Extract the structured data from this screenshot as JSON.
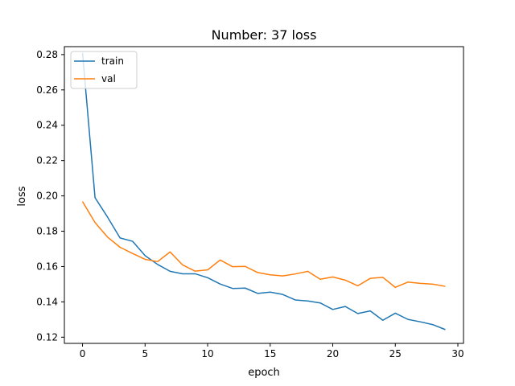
{
  "chart_data": {
    "type": "line",
    "title": "Number: 37 loss",
    "xlabel": "epoch",
    "ylabel": "loss",
    "xlim": [
      -1.45,
      30.45
    ],
    "ylim": [
      0.1165,
      0.2845
    ],
    "xticks": [
      0,
      5,
      10,
      15,
      20,
      25,
      30
    ],
    "yticks": [
      0.12,
      0.14,
      0.16,
      0.18,
      0.2,
      0.22,
      0.24,
      0.26,
      0.28
    ],
    "x": [
      0,
      1,
      2,
      3,
      4,
      5,
      6,
      7,
      8,
      9,
      10,
      11,
      12,
      13,
      14,
      15,
      16,
      17,
      18,
      19,
      20,
      21,
      22,
      23,
      24,
      25,
      26,
      27,
      28,
      29
    ],
    "series": [
      {
        "name": "train",
        "color": "#1f77b4",
        "values": [
          0.281,
          0.199,
          0.188,
          0.1762,
          0.1743,
          0.1662,
          0.1612,
          0.1573,
          0.1559,
          0.1559,
          0.1537,
          0.1501,
          0.1476,
          0.1478,
          0.1448,
          0.1455,
          0.1442,
          0.1411,
          0.1405,
          0.1394,
          0.1357,
          0.1374,
          0.1334,
          0.1349,
          0.1296,
          0.1336,
          0.1301,
          0.1287,
          0.1271,
          0.1243
        ]
      },
      {
        "name": "val",
        "color": "#ff7f0e",
        "values": [
          0.1968,
          0.1849,
          0.1767,
          0.1709,
          0.1674,
          0.1641,
          0.1628,
          0.1683,
          0.1609,
          0.1574,
          0.1581,
          0.1637,
          0.1599,
          0.1601,
          0.1566,
          0.1553,
          0.1547,
          0.1558,
          0.1573,
          0.1528,
          0.1541,
          0.1523,
          0.1491,
          0.1533,
          0.1539,
          0.1482,
          0.1512,
          0.1505,
          0.15,
          0.1488
        ]
      }
    ],
    "legend": "top-left",
    "grid": false
  }
}
